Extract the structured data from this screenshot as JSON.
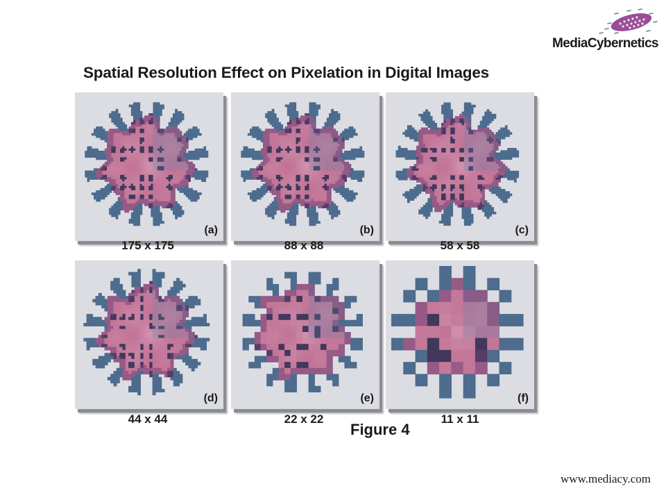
{
  "logo": {
    "text": "MediaCybernetics"
  },
  "title": "Spatial Resolution Effect on Pixelation in Digital Images",
  "panels": [
    {
      "label": "(a)",
      "caption": "175 x 175",
      "resolution": 175
    },
    {
      "label": "(b)",
      "caption": "88 x 88",
      "resolution": 88
    },
    {
      "label": "(c)",
      "caption": "58 x 58",
      "resolution": 58
    },
    {
      "label": "(d)",
      "caption": "44 x 44",
      "resolution": 44
    },
    {
      "label": "(e)",
      "caption": "22 x 22",
      "resolution": 22
    },
    {
      "label": "(f)",
      "caption": "11 x 11",
      "resolution": 11
    }
  ],
  "figure_label": "Figure 4",
  "url": "www.mediacy.com",
  "colors": {
    "pink": "#b0527e",
    "purple": "#6a3f74",
    "navy": "#2f3552",
    "blue": "#5a84a8",
    "background": "#dcdde3"
  }
}
